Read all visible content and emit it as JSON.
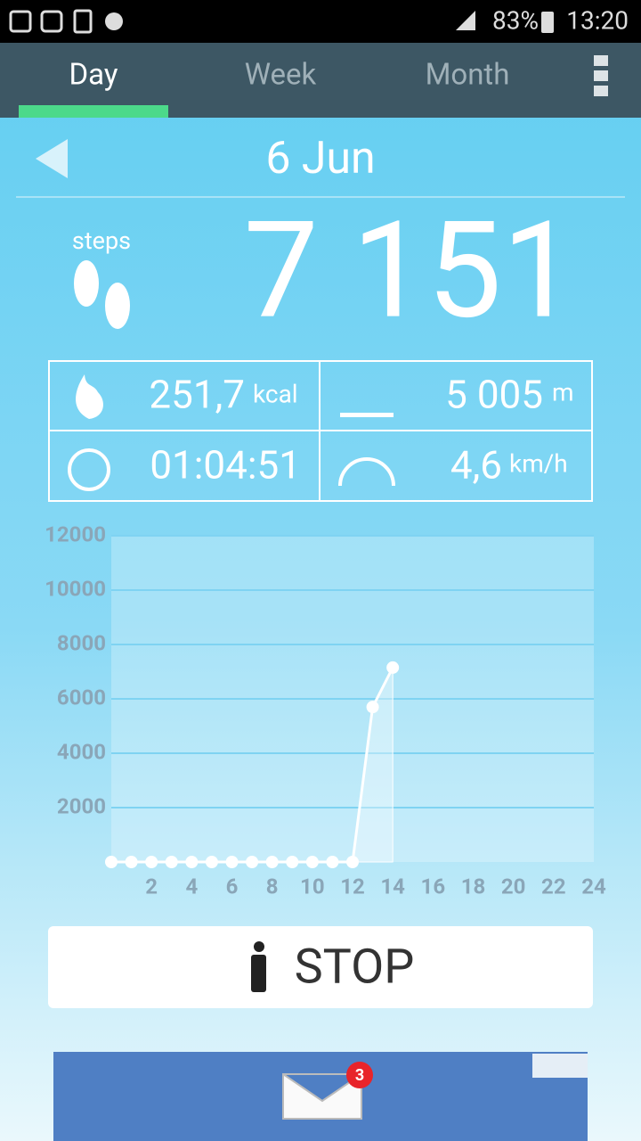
{
  "status_bar": {
    "battery": "83%",
    "time": "13:20"
  },
  "tabs": [
    "Day",
    "Week",
    "Month"
  ],
  "date": "6 Jun",
  "steps": {
    "label": "steps",
    "value": "7 151"
  },
  "stats": {
    "calories": {
      "value": "251,7",
      "unit": "kcal"
    },
    "distance": {
      "value": "5 005",
      "unit": "m"
    },
    "duration": {
      "value": "01:04:51"
    },
    "speed": {
      "value": "4,6",
      "unit": "km/h"
    }
  },
  "chart_data": {
    "type": "line",
    "x": [
      0,
      1,
      2,
      3,
      4,
      5,
      6,
      7,
      8,
      9,
      10,
      11,
      12,
      13,
      14
    ],
    "values": [
      0,
      0,
      0,
      0,
      0,
      0,
      0,
      0,
      0,
      0,
      0,
      0,
      0,
      5700,
      7151
    ],
    "color": "#ffffff",
    "xlim": [
      0,
      24
    ],
    "xticks": [
      2,
      4,
      6,
      8,
      10,
      12,
      14,
      16,
      18,
      20,
      22,
      24
    ],
    "ylim": [
      0,
      12000
    ],
    "yticks": [
      2000,
      4000,
      6000,
      8000,
      10000,
      12000
    ],
    "grid": true
  },
  "button": "STOP",
  "ad": {
    "badge": "3"
  }
}
